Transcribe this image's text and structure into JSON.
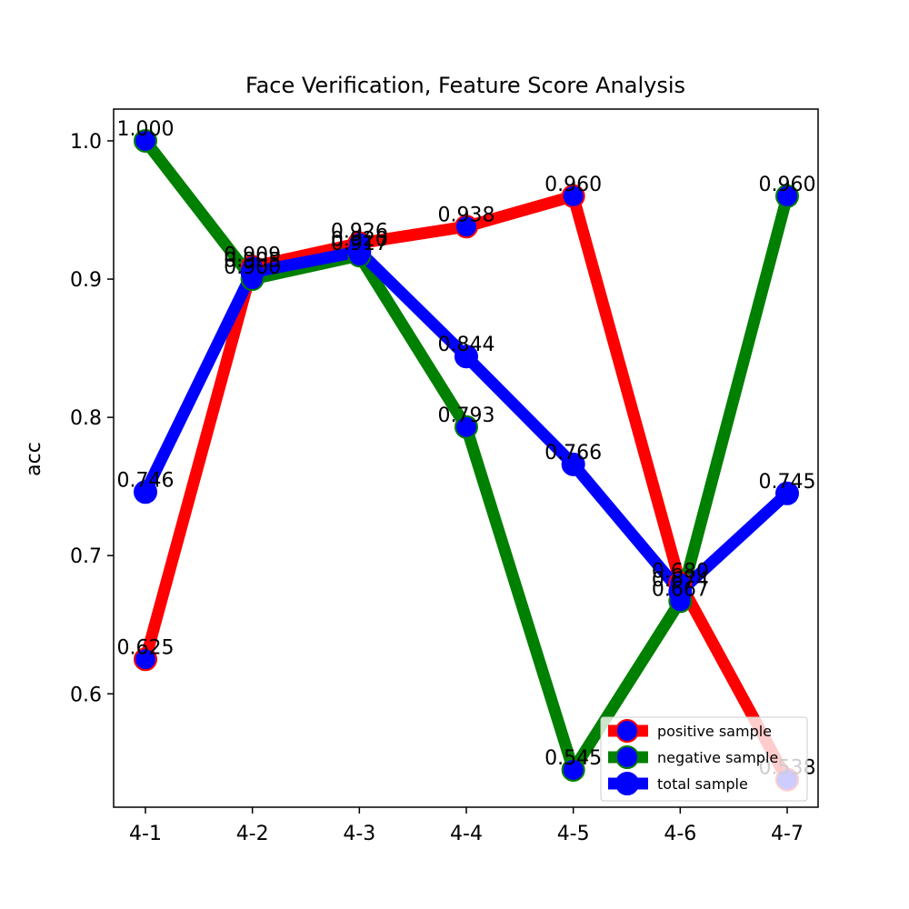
{
  "chart_data": {
    "type": "line",
    "title": "Face Verification, Feature Score Analysis",
    "xlabel": "",
    "ylabel": "acc",
    "categories": [
      "4-1",
      "4-2",
      "4-3",
      "4-4",
      "4-5",
      "4-6",
      "4-7"
    ],
    "ylim": [
      0.518,
      1.023
    ],
    "yticks": [
      0.6,
      0.7,
      0.8,
      0.9,
      1.0
    ],
    "ytick_labels": [
      "0.6",
      "0.7",
      "0.8",
      "0.9",
      "1.0"
    ],
    "grid": false,
    "legend_position": "lower right",
    "series": [
      {
        "name": "positive sample",
        "color": "#ff0000",
        "marker_edge": "#ff0000",
        "values": [
          0.625,
          0.909,
          0.926,
          0.938,
          0.96,
          0.68,
          0.538
        ],
        "labels": [
          "0.625",
          "0.909",
          "0.926",
          "0.938",
          "0.960",
          "0.680",
          "0.538"
        ]
      },
      {
        "name": "negative sample",
        "color": "#008000",
        "marker_edge": "#008000",
        "values": [
          1.0,
          0.9,
          0.917,
          0.793,
          0.545,
          0.667,
          0.96
        ],
        "labels": [
          "1.000",
          "0.900",
          "0.917",
          "0.793",
          "0.545",
          "0.667",
          "0.960"
        ]
      },
      {
        "name": "total sample",
        "color": "#0000ff",
        "marker_edge": "#0000ff",
        "values": [
          0.746,
          0.905,
          0.92,
          0.844,
          0.766,
          0.674,
          0.745
        ],
        "labels": [
          "0.746",
          "0.905",
          "0.920",
          "0.844",
          "0.766",
          "0.674",
          "0.745"
        ]
      }
    ]
  }
}
